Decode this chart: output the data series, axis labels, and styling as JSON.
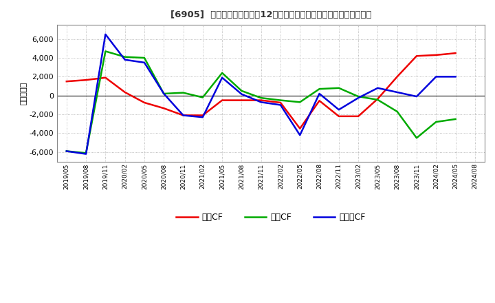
{
  "title": "[6905]  キャッシュフローの12か月移動合計の対前年同期増減額の推移",
  "ylabel": "（百万円）",
  "background_color": "#ffffff",
  "plot_bg_color": "#ffffff",
  "grid_color": "#aaaaaa",
  "ylim": [
    -7000,
    7500
  ],
  "yticks": [
    -6000,
    -4000,
    -2000,
    0,
    2000,
    4000,
    6000
  ],
  "x_labels": [
    "2019/05",
    "2019/08",
    "2019/11",
    "2020/02",
    "2020/05",
    "2020/08",
    "2020/11",
    "2021/02",
    "2021/05",
    "2021/08",
    "2021/11",
    "2022/02",
    "2022/05",
    "2022/08",
    "2022/11",
    "2023/02",
    "2023/05",
    "2023/08",
    "2023/11",
    "2024/02",
    "2024/05",
    "2024/08"
  ],
  "eigyo_cf": [
    1500,
    1650,
    1900,
    350,
    -750,
    -1350,
    -2100,
    -2100,
    -500,
    -500,
    -500,
    -750,
    -3500,
    -550,
    -2200,
    -2200,
    -350,
    2000,
    4200,
    4300,
    4500,
    null
  ],
  "toshi_cf": [
    -5900,
    -6100,
    4700,
    4100,
    4000,
    200,
    300,
    -200,
    2400,
    500,
    -250,
    -500,
    -700,
    700,
    800,
    -100,
    -450,
    -1700,
    -4500,
    -2800,
    -2500,
    null
  ],
  "free_cf": [
    -5900,
    -6200,
    6500,
    3800,
    3500,
    200,
    -2100,
    -2300,
    1900,
    150,
    -700,
    -1000,
    -4200,
    200,
    -1500,
    -250,
    800,
    350,
    -100,
    2000,
    2000,
    null
  ],
  "eigyo_color": "#ee0000",
  "toshi_color": "#00aa00",
  "free_color": "#0000dd",
  "line_width": 1.8,
  "eigyo_label": "営業CF",
  "toshi_label": "投資CF",
  "free_label": "フリーCF"
}
